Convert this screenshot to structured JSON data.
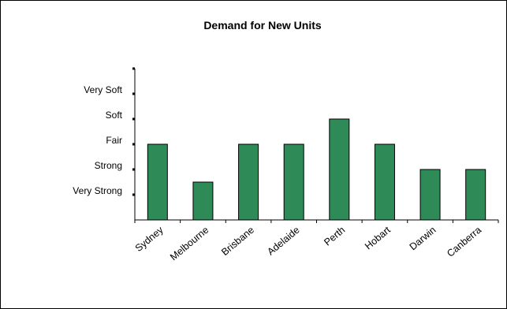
{
  "chart_data": {
    "type": "bar",
    "title": "Demand for New Units",
    "xlabel": "",
    "ylabel": "",
    "categories": [
      "Sydney",
      "Melbourne",
      "Brisbane",
      "Adelaide",
      "Perth",
      "Hobart",
      "Darwin",
      "Canberra"
    ],
    "values": [
      3,
      1.5,
      3,
      3,
      4,
      3,
      2,
      2
    ],
    "ylim": [
      0,
      6
    ],
    "yticks": [
      {
        "value": 1,
        "label": "Very Strong"
      },
      {
        "value": 2,
        "label": "Strong"
      },
      {
        "value": 3,
        "label": "Fair"
      },
      {
        "value": 4,
        "label": "Soft"
      },
      {
        "value": 5,
        "label": "Very Soft"
      }
    ],
    "bar_color": "#2e8b57",
    "grid": false,
    "legend": "none"
  }
}
